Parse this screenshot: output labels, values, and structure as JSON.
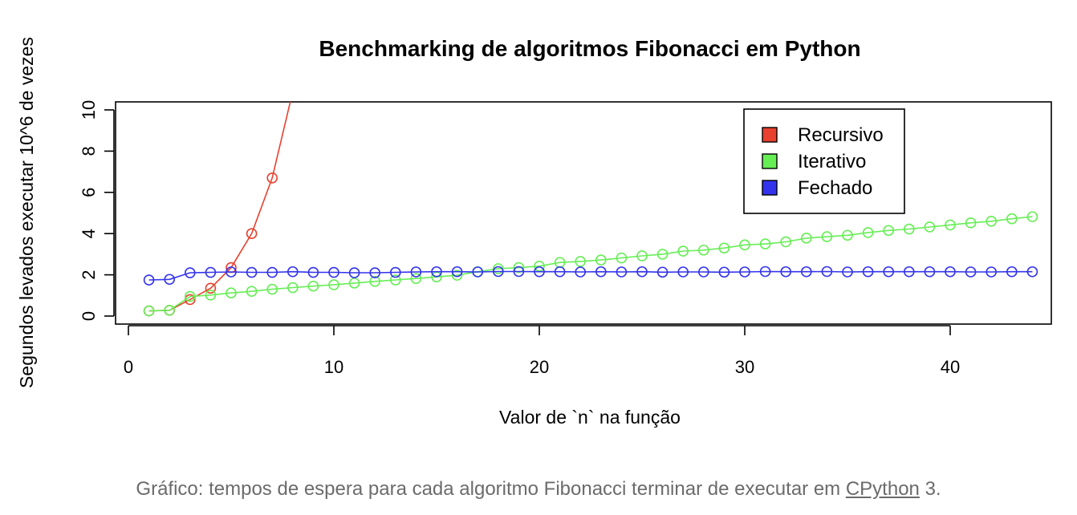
{
  "chart_data": {
    "type": "line",
    "title": "Benchmarking de algoritmos Fibonacci em Python",
    "xlabel": "Valor de `n` na função",
    "ylabel": "Segundos levados executar 10^6 de vezes",
    "xlim": [
      0,
      45
    ],
    "ylim": [
      0,
      10
    ],
    "x_ticks": [
      0,
      10,
      20,
      30,
      40
    ],
    "y_ticks": [
      0,
      2,
      4,
      6,
      8,
      10
    ],
    "legend_position": "top-right",
    "series": [
      {
        "name": "Recursivo",
        "color": "#e8412f",
        "x": [
          1,
          2,
          3,
          4,
          5,
          6,
          7,
          8
        ],
        "y": [
          0.25,
          0.28,
          0.8,
          1.35,
          2.35,
          4.0,
          6.7,
          10.9
        ]
      },
      {
        "name": "Iterativo",
        "color": "#66ee55",
        "x": [
          1,
          2,
          3,
          4,
          5,
          6,
          7,
          8,
          9,
          10,
          11,
          12,
          13,
          14,
          15,
          16,
          17,
          18,
          19,
          20,
          21,
          22,
          23,
          24,
          25,
          26,
          27,
          28,
          29,
          30,
          31,
          32,
          33,
          34,
          35,
          36,
          37,
          38,
          39,
          40,
          41,
          42,
          43,
          44
        ],
        "y": [
          0.25,
          0.28,
          0.95,
          1.02,
          1.12,
          1.2,
          1.3,
          1.38,
          1.45,
          1.52,
          1.6,
          1.68,
          1.75,
          1.82,
          1.9,
          1.98,
          2.15,
          2.3,
          2.35,
          2.42,
          2.6,
          2.65,
          2.72,
          2.82,
          2.92,
          3.0,
          3.15,
          3.2,
          3.3,
          3.45,
          3.5,
          3.6,
          3.78,
          3.85,
          3.92,
          4.05,
          4.15,
          4.22,
          4.32,
          4.42,
          4.52,
          4.6,
          4.72,
          4.82
        ]
      },
      {
        "name": "Fechado",
        "color": "#3333ee",
        "x": [
          1,
          2,
          3,
          4,
          5,
          6,
          7,
          8,
          9,
          10,
          11,
          12,
          13,
          14,
          15,
          16,
          17,
          18,
          19,
          20,
          21,
          22,
          23,
          24,
          25,
          26,
          27,
          28,
          29,
          30,
          31,
          32,
          33,
          34,
          35,
          36,
          37,
          38,
          39,
          40,
          41,
          42,
          43,
          44
        ],
        "y": [
          1.75,
          1.78,
          2.1,
          2.12,
          2.14,
          2.12,
          2.12,
          2.15,
          2.12,
          2.12,
          2.1,
          2.1,
          2.12,
          2.14,
          2.15,
          2.15,
          2.14,
          2.16,
          2.16,
          2.15,
          2.15,
          2.14,
          2.15,
          2.14,
          2.15,
          2.13,
          2.14,
          2.14,
          2.13,
          2.14,
          2.16,
          2.15,
          2.15,
          2.16,
          2.14,
          2.15,
          2.15,
          2.15,
          2.15,
          2.15,
          2.14,
          2.14,
          2.15,
          2.15
        ]
      }
    ]
  },
  "caption": {
    "before": "Gráfico: tempos de espera para cada algoritmo Fibonacci terminar de executar em ",
    "link": "CPython",
    "after": " 3."
  }
}
